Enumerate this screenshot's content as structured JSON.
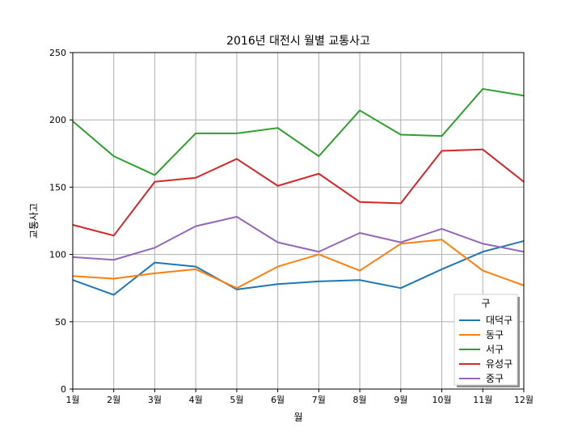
{
  "chart_data": {
    "type": "line",
    "title": "2016년 대전시 월별 교통사고",
    "xlabel": "월",
    "ylabel": "교통사고",
    "categories": [
      "1월",
      "2월",
      "3월",
      "4월",
      "5월",
      "6월",
      "7월",
      "8월",
      "9월",
      "10월",
      "11월",
      "12월"
    ],
    "ylim": [
      0,
      250
    ],
    "yticks": [
      0,
      50,
      100,
      150,
      200,
      250
    ],
    "grid": true,
    "legend": {
      "title": "구",
      "placement": "lower-right"
    },
    "series": [
      {
        "name": "대덕구",
        "color": "#1f77b4",
        "values": [
          81,
          70,
          94,
          91,
          74,
          78,
          80,
          81,
          75,
          89,
          102,
          110
        ]
      },
      {
        "name": "동구",
        "color": "#ff7f0e",
        "values": [
          84,
          82,
          86,
          89,
          75,
          91,
          100,
          88,
          108,
          111,
          88,
          77
        ]
      },
      {
        "name": "서구",
        "color": "#2ca02c",
        "values": [
          199,
          173,
          159,
          190,
          190,
          194,
          173,
          207,
          189,
          188,
          223,
          218
        ]
      },
      {
        "name": "유성구",
        "color": "#d62728",
        "values": [
          122,
          114,
          154,
          157,
          171,
          151,
          160,
          139,
          138,
          177,
          178,
          154
        ]
      },
      {
        "name": "중구",
        "color": "#9467bd",
        "values": [
          98,
          96,
          105,
          121,
          128,
          109,
          102,
          116,
          109,
          119,
          108,
          102
        ]
      }
    ]
  }
}
